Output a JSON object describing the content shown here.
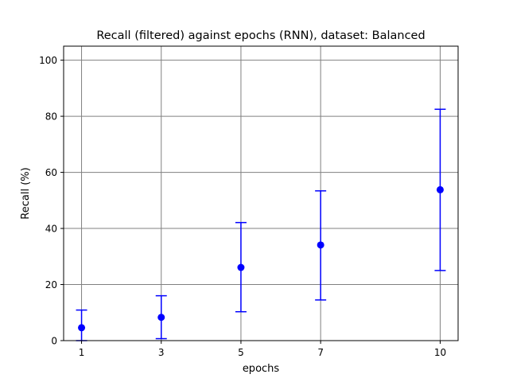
{
  "chart_data": {
    "type": "scatter",
    "title": "Recall (filtered) against epochs (RNN), dataset: Balanced",
    "xlabel": "epochs",
    "ylabel": "Recall (%)",
    "x": [
      1,
      3,
      5,
      7,
      10
    ],
    "series": [
      {
        "values": [
          4.6,
          8.3,
          26.1,
          34.1,
          53.8
        ],
        "error_low": [
          0,
          0.7,
          10.3,
          14.5,
          25.0
        ],
        "error_high": [
          10.9,
          16.0,
          42.1,
          53.4,
          82.5
        ],
        "color": "#0000ff"
      }
    ],
    "xticks": [
      1,
      3,
      5,
      7,
      10
    ],
    "yticks": [
      0,
      20,
      40,
      60,
      80,
      100
    ],
    "xlim": [
      0.55,
      10.45
    ],
    "ylim": [
      0,
      105
    ],
    "grid": true,
    "grid_color": "#808080",
    "marker": "circle",
    "errorbar_caps": true
  }
}
